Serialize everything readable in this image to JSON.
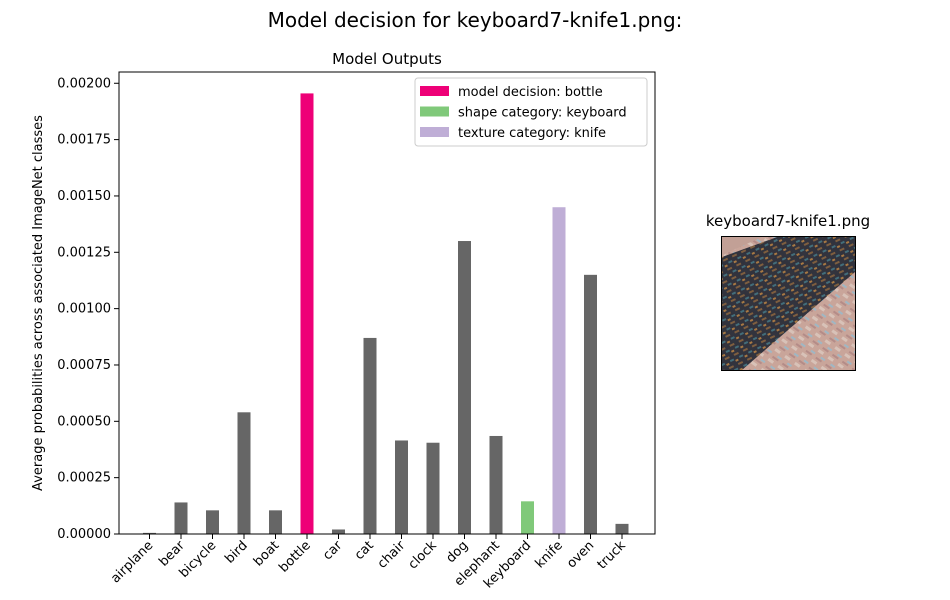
{
  "figure_title": "Model decision for keyboard7-knife1.png:",
  "image_panel": {
    "title": "keyboard7-knife1.png",
    "image": "stylized keyboard-shape knife-texture image"
  },
  "chart_data": {
    "type": "bar",
    "title": "Model Outputs",
    "xlabel": "",
    "ylabel": "Average probabilities across associated ImageNet classes",
    "categories": [
      "airplane",
      "bear",
      "bicycle",
      "bird",
      "boat",
      "bottle",
      "car",
      "cat",
      "chair",
      "clock",
      "dog",
      "elephant",
      "keyboard",
      "knife",
      "oven",
      "truck"
    ],
    "values": [
      5e-06,
      0.00014,
      0.000105,
      0.00054,
      0.000105,
      0.001955,
      2e-05,
      0.00087,
      0.000415,
      0.000405,
      0.0013,
      0.000435,
      0.000145,
      0.00145,
      0.00115,
      4.5e-05
    ],
    "ylim": [
      0,
      0.00205
    ],
    "yticks": [
      "0.00000",
      "0.00025",
      "0.00050",
      "0.00075",
      "0.00100",
      "0.00125",
      "0.00150",
      "0.00175",
      "0.00200"
    ],
    "ytick_values": [
      0,
      0.00025,
      0.0005,
      0.00075,
      0.001,
      0.00125,
      0.0015,
      0.00175,
      0.002
    ],
    "grid": false,
    "legend_position": "top-right",
    "legend": [
      {
        "label": "model decision: bottle",
        "color": "#ee0077",
        "category": "bottle"
      },
      {
        "label": "shape category: keyboard",
        "color": "#80c97a",
        "category": "keyboard"
      },
      {
        "label": "texture category: knife",
        "color": "#bfaed6",
        "category": "knife"
      }
    ],
    "default_color": "#666666"
  }
}
